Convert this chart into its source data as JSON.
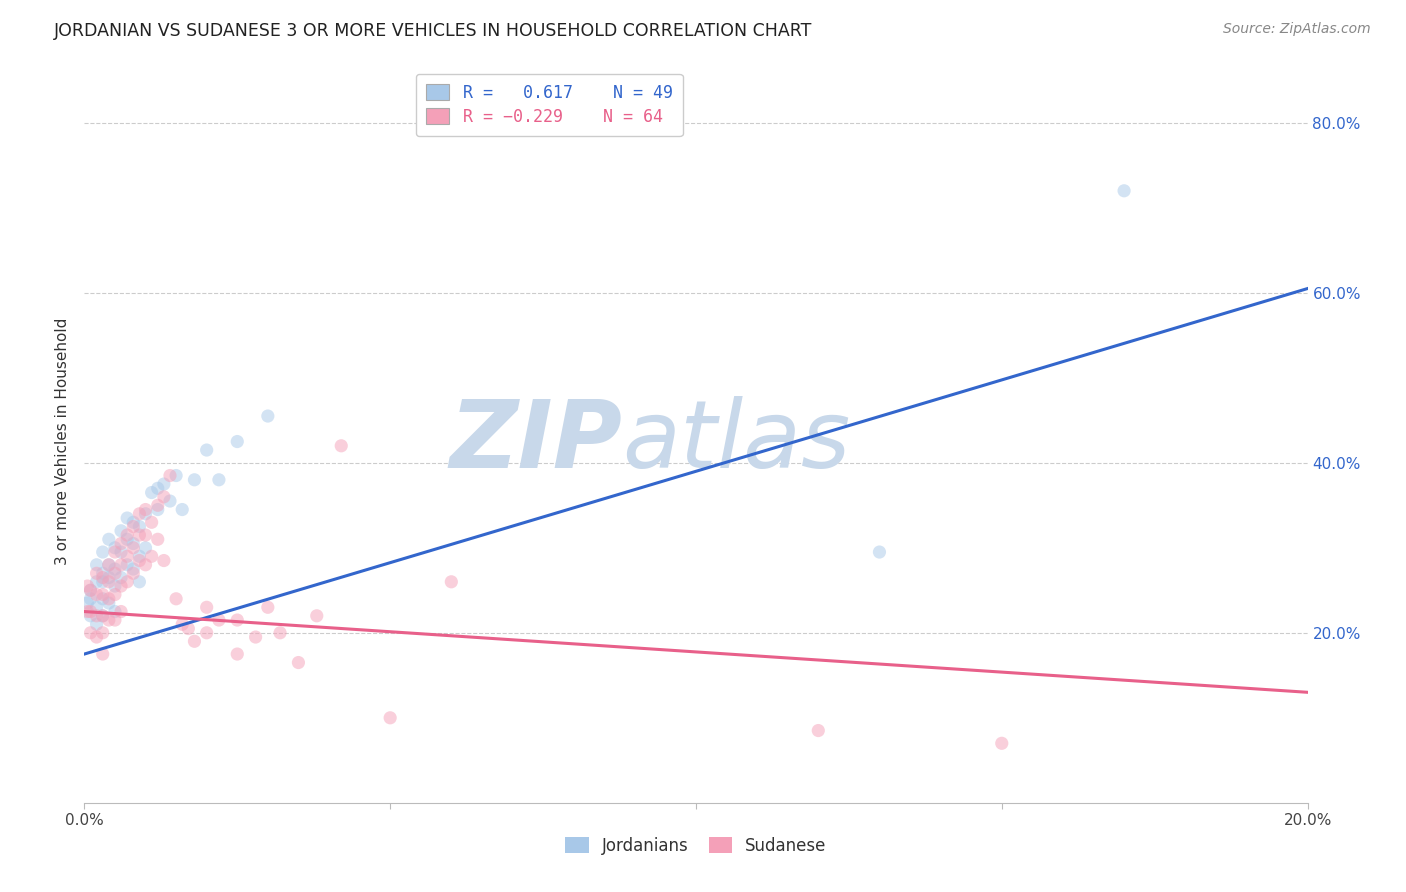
{
  "title": "JORDANIAN VS SUDANESE 3 OR MORE VEHICLES IN HOUSEHOLD CORRELATION CHART",
  "source": "Source: ZipAtlas.com",
  "ylabel": "3 or more Vehicles in Household",
  "xmin": 0.0,
  "xmax": 0.2,
  "ymin": 0.0,
  "ymax": 0.85,
  "yticks": [
    0.2,
    0.4,
    0.6,
    0.8
  ],
  "ytick_labels": [
    "20.0%",
    "40.0%",
    "60.0%",
    "80.0%"
  ],
  "xtick_labels": [
    "0.0%",
    "",
    "",
    "",
    "20.0%"
  ],
  "blue_R": 0.617,
  "blue_N": 49,
  "pink_R": -0.229,
  "pink_N": 64,
  "blue_color": "#A8C8E8",
  "pink_color": "#F4A0B8",
  "blue_line_color": "#3366CC",
  "pink_line_color": "#E8608A",
  "watermark_color": "#C8D8EA",
  "blue_line_x0": 0.0,
  "blue_line_y0": 0.175,
  "blue_line_x1": 0.2,
  "blue_line_y1": 0.605,
  "pink_line_x0": 0.0,
  "pink_line_y0": 0.225,
  "pink_line_x1": 0.2,
  "pink_line_y1": 0.13,
  "blue_scatter_x": [
    0.0005,
    0.001,
    0.001,
    0.001,
    0.002,
    0.002,
    0.002,
    0.002,
    0.003,
    0.003,
    0.003,
    0.003,
    0.003,
    0.004,
    0.004,
    0.004,
    0.004,
    0.005,
    0.005,
    0.005,
    0.005,
    0.006,
    0.006,
    0.006,
    0.007,
    0.007,
    0.007,
    0.008,
    0.008,
    0.008,
    0.009,
    0.009,
    0.009,
    0.01,
    0.01,
    0.011,
    0.012,
    0.012,
    0.013,
    0.014,
    0.015,
    0.016,
    0.018,
    0.02,
    0.022,
    0.025,
    0.03,
    0.13,
    0.17
  ],
  "blue_scatter_y": [
    0.235,
    0.25,
    0.22,
    0.24,
    0.26,
    0.23,
    0.28,
    0.21,
    0.27,
    0.295,
    0.26,
    0.24,
    0.22,
    0.31,
    0.28,
    0.265,
    0.235,
    0.3,
    0.275,
    0.255,
    0.225,
    0.32,
    0.295,
    0.265,
    0.335,
    0.31,
    0.28,
    0.33,
    0.305,
    0.275,
    0.325,
    0.29,
    0.26,
    0.34,
    0.3,
    0.365,
    0.37,
    0.345,
    0.375,
    0.355,
    0.385,
    0.345,
    0.38,
    0.415,
    0.38,
    0.425,
    0.455,
    0.295,
    0.72
  ],
  "pink_scatter_x": [
    0.0005,
    0.0005,
    0.001,
    0.001,
    0.001,
    0.002,
    0.002,
    0.002,
    0.002,
    0.003,
    0.003,
    0.003,
    0.003,
    0.003,
    0.004,
    0.004,
    0.004,
    0.004,
    0.005,
    0.005,
    0.005,
    0.005,
    0.006,
    0.006,
    0.006,
    0.006,
    0.007,
    0.007,
    0.007,
    0.008,
    0.008,
    0.008,
    0.009,
    0.009,
    0.009,
    0.01,
    0.01,
    0.01,
    0.011,
    0.011,
    0.012,
    0.012,
    0.013,
    0.013,
    0.014,
    0.015,
    0.016,
    0.017,
    0.018,
    0.02,
    0.02,
    0.022,
    0.025,
    0.025,
    0.028,
    0.03,
    0.032,
    0.035,
    0.038,
    0.042,
    0.05,
    0.06,
    0.12,
    0.15
  ],
  "pink_scatter_y": [
    0.255,
    0.225,
    0.25,
    0.225,
    0.2,
    0.27,
    0.245,
    0.22,
    0.195,
    0.265,
    0.245,
    0.22,
    0.2,
    0.175,
    0.28,
    0.26,
    0.24,
    0.215,
    0.295,
    0.27,
    0.245,
    0.215,
    0.305,
    0.28,
    0.255,
    0.225,
    0.315,
    0.29,
    0.26,
    0.325,
    0.3,
    0.27,
    0.34,
    0.315,
    0.285,
    0.345,
    0.315,
    0.28,
    0.33,
    0.29,
    0.35,
    0.31,
    0.36,
    0.285,
    0.385,
    0.24,
    0.21,
    0.205,
    0.19,
    0.23,
    0.2,
    0.215,
    0.215,
    0.175,
    0.195,
    0.23,
    0.2,
    0.165,
    0.22,
    0.42,
    0.1,
    0.26,
    0.085,
    0.07
  ],
  "title_fontsize": 12.5,
  "source_fontsize": 10,
  "ylabel_fontsize": 11,
  "axis_tick_fontsize": 11,
  "legend_fontsize": 12,
  "background_color": "#FFFFFF",
  "grid_color": "#CCCCCC",
  "scatter_size": 90,
  "scatter_alpha": 0.5,
  "line_width": 2.2
}
